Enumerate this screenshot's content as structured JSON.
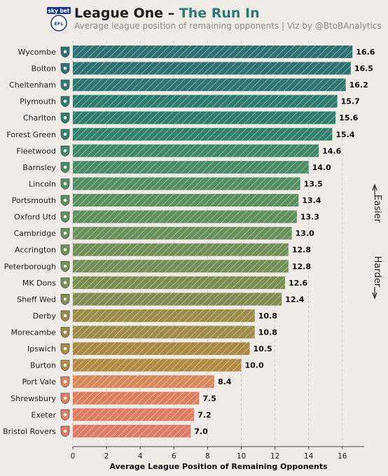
{
  "header": {
    "title_main": "League One – ",
    "title_accent": "The Run In",
    "subtitle": "Average league position of remaining opponents | Viz by @BtoBAnalytics",
    "logo_text": "sky bet",
    "logo_sub": "EFL"
  },
  "colors": {
    "background": "#efebe6",
    "accent": "#2e7a72"
  },
  "chart_data": {
    "type": "bar",
    "orientation": "horizontal",
    "title": "League One – The Run In",
    "subtitle": "Average league position of remaining opponents | Viz by @BtoBAnalytics",
    "xlabel": "Average League Position of Remaining Opponents",
    "ylabel": "",
    "xlim": [
      0,
      17.3
    ],
    "xticks": [
      0,
      2,
      4,
      6,
      8,
      10,
      12,
      14,
      16
    ],
    "grid": "vertical dashed",
    "categories": [
      "Wycombe",
      "Bolton",
      "Cheltenham",
      "Plymouth",
      "Charlton",
      "Forest Green",
      "Fleetwood",
      "Barnsley",
      "Lincoln",
      "Portsmouth",
      "Oxford Utd",
      "Cambridge",
      "Accrington",
      "Peterborough",
      "MK Dons",
      "Sheff Wed",
      "Derby",
      "Morecambe",
      "Ipswich",
      "Burton",
      "Port Vale",
      "Shrewsbury",
      "Exeter",
      "Bristol Rovers"
    ],
    "values": [
      16.6,
      16.5,
      16.2,
      15.7,
      15.6,
      15.4,
      14.6,
      14.0,
      13.5,
      13.4,
      13.3,
      13.0,
      12.8,
      12.8,
      12.6,
      12.4,
      10.8,
      10.8,
      10.5,
      10.0,
      8.4,
      7.5,
      7.2,
      7.0
    ],
    "value_labels": [
      "16.6",
      "16.5",
      "16.2",
      "15.7",
      "15.6",
      "15.4",
      "14.6",
      "14.0",
      "13.5",
      "13.4",
      "13.3",
      "13.0",
      "12.8",
      "12.8",
      "12.6",
      "12.4",
      "10.8",
      "10.8",
      "10.5",
      "10.0",
      "8.4",
      "7.5",
      "7.2",
      "7.0"
    ],
    "colors": [
      "#2d7270",
      "#2d7270",
      "#2e7670",
      "#2f7a6e",
      "#317d6d",
      "#34816b",
      "#3f8868",
      "#4a8c65",
      "#548f63",
      "#5a9061",
      "#5f915f",
      "#69925c",
      "#728f58",
      "#749056",
      "#7c8f53",
      "#818c50",
      "#9b8c48",
      "#9e8b47",
      "#a88a45",
      "#b38a42",
      "#d6895a",
      "#da8260",
      "#dc7f62",
      "#dd7b64"
    ],
    "side_annotations": {
      "top": "Easier",
      "bottom": "Harder"
    }
  }
}
